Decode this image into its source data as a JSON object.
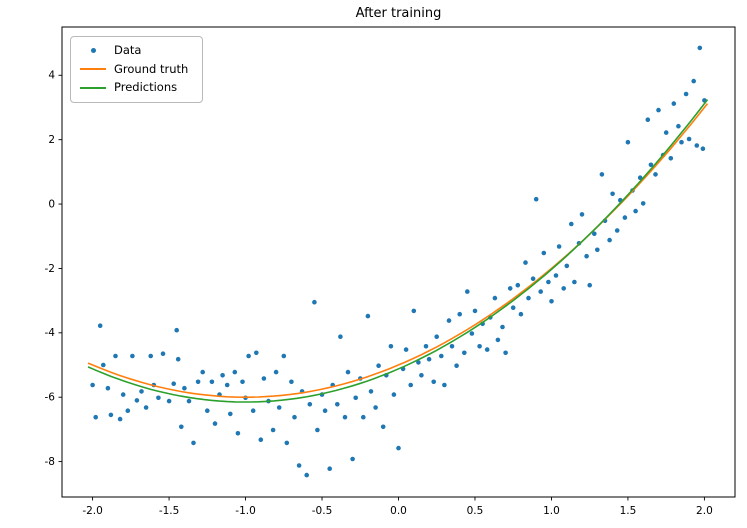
{
  "chart_data": {
    "type": "scatter",
    "title": "After training",
    "xlim": [
      -2.2,
      2.2
    ],
    "ylim": [
      -9.1,
      5.5
    ],
    "grid": false,
    "legend_position": "upper left",
    "xticks": [
      -2.0,
      -1.5,
      -1.0,
      -0.5,
      0.0,
      0.5,
      1.0,
      1.5,
      2.0
    ],
    "xtick_labels": [
      "-2.0",
      "-1.5",
      "-1.0",
      "-0.5",
      "0.0",
      "0.5",
      "1.0",
      "1.5",
      "2.0"
    ],
    "yticks": [
      -8,
      -6,
      -4,
      -2,
      0,
      2,
      4
    ],
    "ytick_labels": [
      "-8",
      "-6",
      "-4",
      "-2",
      "0",
      "2",
      "4"
    ],
    "legend": [
      "Data",
      "Ground truth",
      "Predictions"
    ],
    "colors": {
      "data": "#1f77b4",
      "ground_truth": "#ff7f0e",
      "predictions": "#2ca02c",
      "axis": "#000000"
    },
    "curves": [
      {
        "name": "Ground truth",
        "color_key": "ground_truth",
        "equation": "y = x^2 + 2x - 5",
        "coeffs": [
          1.0,
          2.0,
          -5.0
        ],
        "x_range": [
          -2.03,
          2.02
        ]
      },
      {
        "name": "Predictions",
        "color_key": "predictions",
        "equation": "y = 1.03x^2 + 2.06x - 5.12",
        "coeffs": [
          1.03,
          2.06,
          -5.12
        ],
        "x_range": [
          -2.03,
          2.02
        ]
      }
    ],
    "scatter": [
      [
        -2.0,
        -5.62
      ],
      [
        -1.98,
        -6.62
      ],
      [
        -1.95,
        -3.78
      ],
      [
        -1.93,
        -5.0
      ],
      [
        -1.9,
        -5.72
      ],
      [
        -1.88,
        -6.55
      ],
      [
        -1.85,
        -4.72
      ],
      [
        -1.82,
        -6.68
      ],
      [
        -1.8,
        -5.92
      ],
      [
        -1.77,
        -6.42
      ],
      [
        -1.74,
        -4.72
      ],
      [
        -1.71,
        -6.1
      ],
      [
        -1.68,
        -5.82
      ],
      [
        -1.65,
        -6.32
      ],
      [
        -1.62,
        -4.72
      ],
      [
        -1.6,
        -5.62
      ],
      [
        -1.57,
        -6.02
      ],
      [
        -1.54,
        -4.65
      ],
      [
        -1.5,
        -6.12
      ],
      [
        -1.47,
        -5.58
      ],
      [
        -1.45,
        -3.92
      ],
      [
        -1.44,
        -4.82
      ],
      [
        -1.42,
        -6.92
      ],
      [
        -1.4,
        -5.72
      ],
      [
        -1.37,
        -6.12
      ],
      [
        -1.34,
        -7.42
      ],
      [
        -1.31,
        -5.52
      ],
      [
        -1.28,
        -5.22
      ],
      [
        -1.25,
        -6.42
      ],
      [
        -1.22,
        -5.52
      ],
      [
        -1.2,
        -6.82
      ],
      [
        -1.17,
        -5.92
      ],
      [
        -1.15,
        -5.32
      ],
      [
        -1.12,
        -5.62
      ],
      [
        -1.1,
        -6.52
      ],
      [
        -1.07,
        -5.22
      ],
      [
        -1.05,
        -7.12
      ],
      [
        -1.02,
        -5.52
      ],
      [
        -1.0,
        -6.02
      ],
      [
        -0.98,
        -4.72
      ],
      [
        -0.95,
        -6.42
      ],
      [
        -0.93,
        -4.62
      ],
      [
        -0.9,
        -7.32
      ],
      [
        -0.88,
        -5.42
      ],
      [
        -0.85,
        -6.12
      ],
      [
        -0.82,
        -7.02
      ],
      [
        -0.8,
        -5.22
      ],
      [
        -0.78,
        -6.32
      ],
      [
        -0.75,
        -4.72
      ],
      [
        -0.73,
        -7.42
      ],
      [
        -0.7,
        -5.52
      ],
      [
        -0.68,
        -6.62
      ],
      [
        -0.65,
        -8.12
      ],
      [
        -0.63,
        -5.82
      ],
      [
        -0.6,
        -8.42
      ],
      [
        -0.58,
        -6.22
      ],
      [
        -0.55,
        -3.05
      ],
      [
        -0.53,
        -7.02
      ],
      [
        -0.5,
        -5.92
      ],
      [
        -0.48,
        -6.42
      ],
      [
        -0.45,
        -8.22
      ],
      [
        -0.43,
        -5.62
      ],
      [
        -0.4,
        -6.22
      ],
      [
        -0.38,
        -4.12
      ],
      [
        -0.35,
        -6.62
      ],
      [
        -0.33,
        -5.22
      ],
      [
        -0.3,
        -7.92
      ],
      [
        -0.28,
        -6.02
      ],
      [
        -0.25,
        -5.42
      ],
      [
        -0.23,
        -6.62
      ],
      [
        -0.2,
        -3.48
      ],
      [
        -0.18,
        -5.82
      ],
      [
        -0.15,
        -6.32
      ],
      [
        -0.13,
        -5.02
      ],
      [
        -0.1,
        -6.92
      ],
      [
        -0.08,
        -5.32
      ],
      [
        -0.05,
        -4.42
      ],
      [
        -0.03,
        -5.92
      ],
      [
        0.0,
        -7.58
      ],
      [
        0.03,
        -5.12
      ],
      [
        0.05,
        -4.52
      ],
      [
        0.08,
        -5.62
      ],
      [
        0.1,
        -3.32
      ],
      [
        0.13,
        -4.92
      ],
      [
        0.15,
        -5.32
      ],
      [
        0.18,
        -4.42
      ],
      [
        0.2,
        -4.82
      ],
      [
        0.23,
        -5.52
      ],
      [
        0.25,
        -4.12
      ],
      [
        0.28,
        -4.72
      ],
      [
        0.3,
        -5.62
      ],
      [
        0.33,
        -3.62
      ],
      [
        0.35,
        -4.42
      ],
      [
        0.38,
        -5.02
      ],
      [
        0.4,
        -3.42
      ],
      [
        0.43,
        -4.62
      ],
      [
        0.45,
        -2.72
      ],
      [
        0.48,
        -4.02
      ],
      [
        0.5,
        -3.32
      ],
      [
        0.53,
        -4.42
      ],
      [
        0.55,
        -3.72
      ],
      [
        0.58,
        -4.52
      ],
      [
        0.6,
        -3.52
      ],
      [
        0.63,
        -2.92
      ],
      [
        0.65,
        -4.22
      ],
      [
        0.68,
        -3.82
      ],
      [
        0.7,
        -4.62
      ],
      [
        0.73,
        -2.62
      ],
      [
        0.75,
        -3.22
      ],
      [
        0.78,
        -2.52
      ],
      [
        0.8,
        -3.42
      ],
      [
        0.83,
        -1.82
      ],
      [
        0.85,
        -2.92
      ],
      [
        0.88,
        -2.32
      ],
      [
        0.9,
        0.15
      ],
      [
        0.93,
        -2.72
      ],
      [
        0.95,
        -1.52
      ],
      [
        0.98,
        -2.42
      ],
      [
        1.0,
        -3.02
      ],
      [
        1.03,
        -2.22
      ],
      [
        1.05,
        -1.32
      ],
      [
        1.08,
        -2.62
      ],
      [
        1.1,
        -1.92
      ],
      [
        1.13,
        -0.62
      ],
      [
        1.15,
        -2.42
      ],
      [
        1.18,
        -1.22
      ],
      [
        1.2,
        -0.32
      ],
      [
        1.23,
        -1.62
      ],
      [
        1.25,
        -2.52
      ],
      [
        1.28,
        -0.92
      ],
      [
        1.3,
        -1.42
      ],
      [
        1.33,
        0.92
      ],
      [
        1.35,
        -0.52
      ],
      [
        1.38,
        -1.12
      ],
      [
        1.4,
        0.32
      ],
      [
        1.43,
        -0.82
      ],
      [
        1.45,
        0.12
      ],
      [
        1.48,
        -0.42
      ],
      [
        1.5,
        1.92
      ],
      [
        1.53,
        0.42
      ],
      [
        1.55,
        -0.22
      ],
      [
        1.58,
        0.82
      ],
      [
        1.6,
        0.02
      ],
      [
        1.63,
        2.62
      ],
      [
        1.65,
        1.22
      ],
      [
        1.68,
        0.92
      ],
      [
        1.7,
        2.92
      ],
      [
        1.73,
        1.52
      ],
      [
        1.75,
        2.22
      ],
      [
        1.78,
        1.42
      ],
      [
        1.8,
        3.12
      ],
      [
        1.83,
        2.42
      ],
      [
        1.85,
        1.92
      ],
      [
        1.88,
        3.42
      ],
      [
        1.9,
        2.02
      ],
      [
        1.93,
        3.82
      ],
      [
        1.95,
        1.82
      ],
      [
        1.97,
        4.85
      ],
      [
        1.99,
        1.72
      ],
      [
        2.0,
        3.22
      ]
    ]
  }
}
